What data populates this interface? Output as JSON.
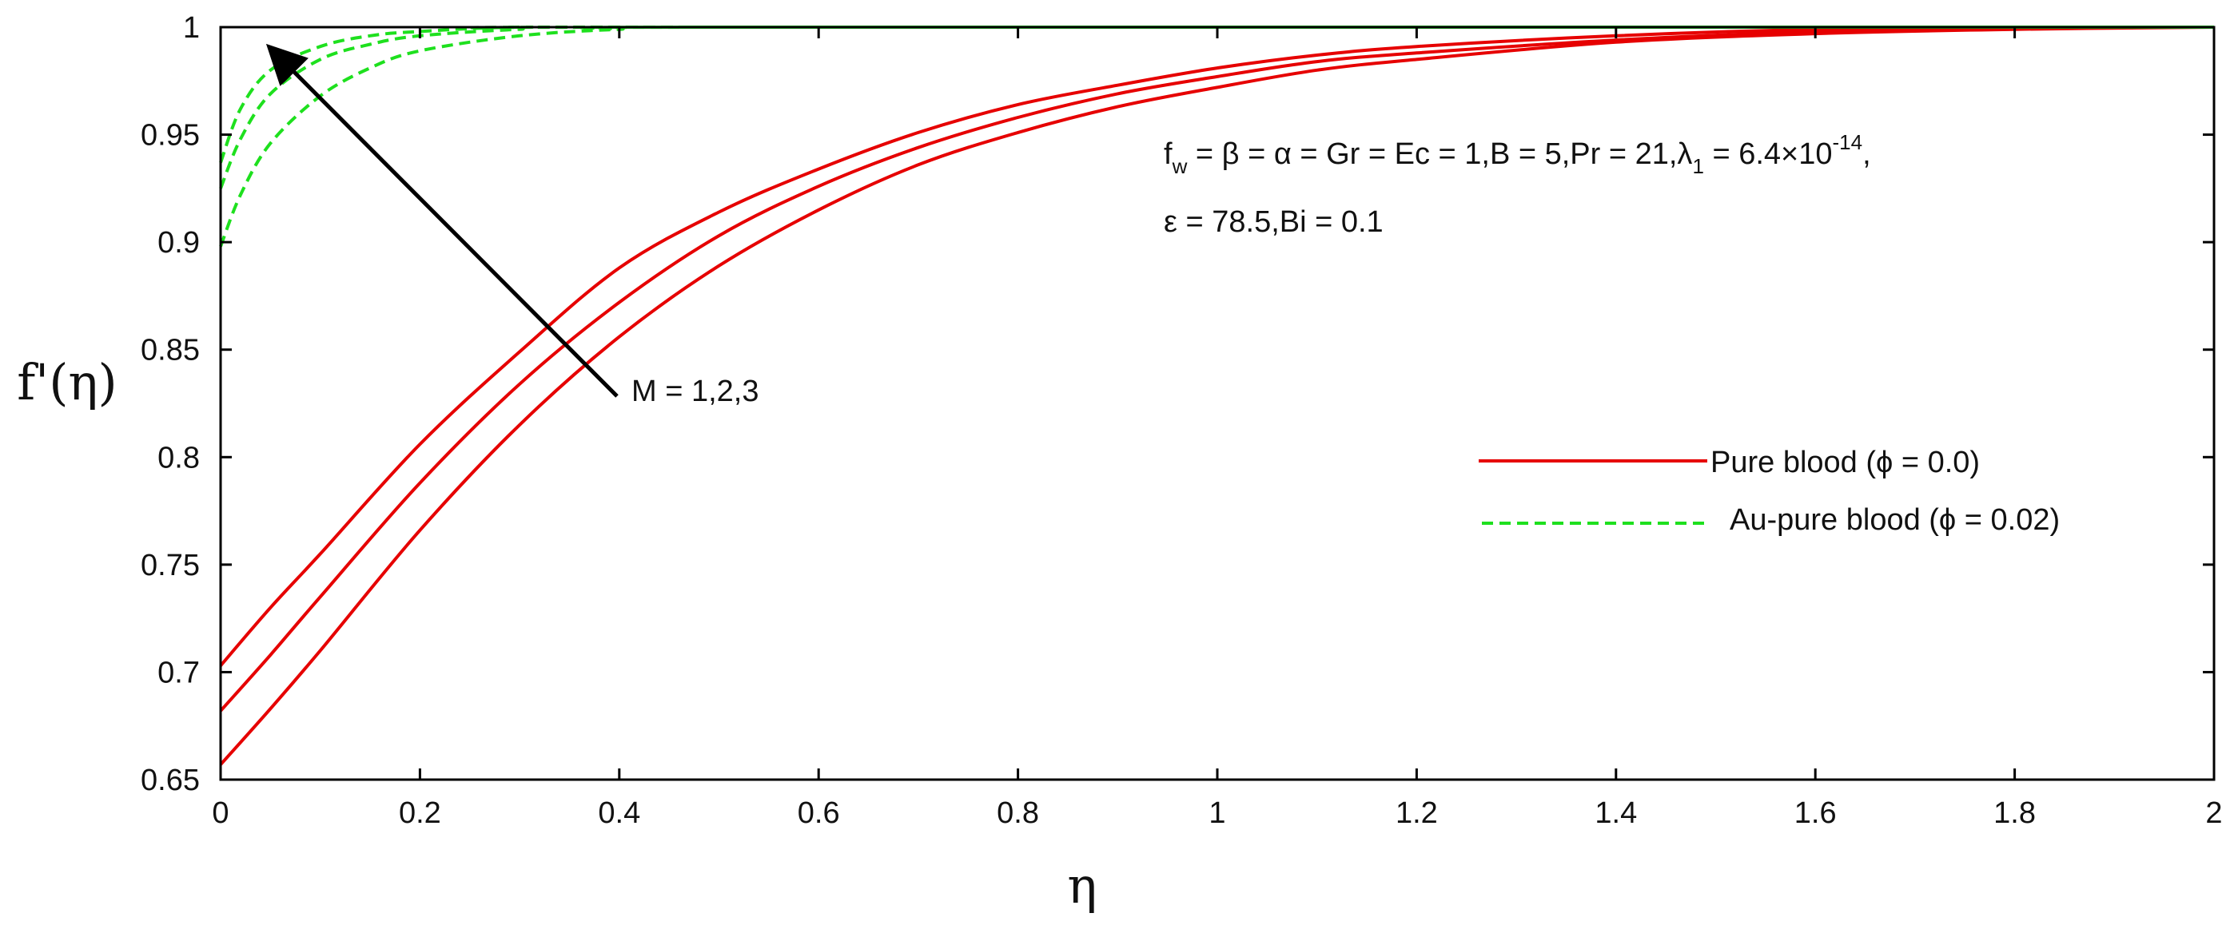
{
  "chart_data": {
    "type": "line",
    "xlabel": "η",
    "ylabel": "f'(η)",
    "xlim": [
      0,
      2
    ],
    "ylim": [
      0.65,
      1
    ],
    "x_ticks": [
      "0",
      "0.2",
      "0.4",
      "0.6",
      "0.8",
      "1",
      "1.2",
      "1.4",
      "1.6",
      "1.8",
      "2"
    ],
    "y_ticks": [
      "0.65",
      "0.7",
      "0.75",
      "0.8",
      "0.85",
      "0.9",
      "0.95",
      "1"
    ],
    "grid": false,
    "legend_position": "right",
    "series": [
      {
        "group": "Pure blood (ϕ = 0.0)",
        "M": 1,
        "color": "#e60000",
        "style": "solid",
        "points": [
          [
            0,
            0.703
          ],
          [
            0.05,
            0.73
          ],
          [
            0.1,
            0.755
          ],
          [
            0.2,
            0.806
          ],
          [
            0.3,
            0.849
          ],
          [
            0.4,
            0.888
          ],
          [
            0.5,
            0.914
          ],
          [
            0.6,
            0.934
          ],
          [
            0.7,
            0.951
          ],
          [
            0.8,
            0.964
          ],
          [
            0.9,
            0.973
          ],
          [
            1.0,
            0.981
          ],
          [
            1.1,
            0.987
          ],
          [
            1.2,
            0.991
          ],
          [
            1.4,
            0.996
          ],
          [
            1.6,
            0.999
          ],
          [
            1.8,
            1.0
          ],
          [
            2.0,
            1.0
          ]
        ]
      },
      {
        "group": "Pure blood (ϕ = 0.0)",
        "M": 2,
        "color": "#e60000",
        "style": "solid",
        "points": [
          [
            0,
            0.682
          ],
          [
            0.05,
            0.708
          ],
          [
            0.1,
            0.735
          ],
          [
            0.2,
            0.788
          ],
          [
            0.3,
            0.834
          ],
          [
            0.4,
            0.872
          ],
          [
            0.5,
            0.903
          ],
          [
            0.6,
            0.926
          ],
          [
            0.7,
            0.944
          ],
          [
            0.8,
            0.958
          ],
          [
            0.9,
            0.969
          ],
          [
            1.0,
            0.977
          ],
          [
            1.1,
            0.984
          ],
          [
            1.2,
            0.988
          ],
          [
            1.4,
            0.994
          ],
          [
            1.6,
            0.998
          ],
          [
            1.8,
            1.0
          ],
          [
            2.0,
            1.0
          ]
        ]
      },
      {
        "group": "Pure blood (ϕ = 0.0)",
        "M": 3,
        "color": "#e60000",
        "style": "solid",
        "points": [
          [
            0,
            0.657
          ],
          [
            0.05,
            0.683
          ],
          [
            0.1,
            0.71
          ],
          [
            0.2,
            0.766
          ],
          [
            0.3,
            0.815
          ],
          [
            0.4,
            0.856
          ],
          [
            0.5,
            0.889
          ],
          [
            0.6,
            0.915
          ],
          [
            0.7,
            0.936
          ],
          [
            0.8,
            0.951
          ],
          [
            0.9,
            0.963
          ],
          [
            1.0,
            0.972
          ],
          [
            1.1,
            0.98
          ],
          [
            1.2,
            0.985
          ],
          [
            1.4,
            0.993
          ],
          [
            1.6,
            0.997
          ],
          [
            1.8,
            0.999
          ],
          [
            2.0,
            1.0
          ]
        ]
      },
      {
        "group": "Au-pure blood (ϕ = 0.02)",
        "M": 1,
        "color": "#1ee01e",
        "style": "dashed",
        "points": [
          [
            0,
            0.937
          ],
          [
            0.02,
            0.962
          ],
          [
            0.05,
            0.98
          ],
          [
            0.1,
            0.991
          ],
          [
            0.15,
            0.996
          ],
          [
            0.2,
            0.998
          ],
          [
            0.3,
            1.0
          ],
          [
            0.5,
            1.0
          ],
          [
            2.0,
            1.0
          ]
        ]
      },
      {
        "group": "Au-pure blood (ϕ = 0.02)",
        "M": 2,
        "color": "#1ee01e",
        "style": "dashed",
        "points": [
          [
            0,
            0.925
          ],
          [
            0.02,
            0.948
          ],
          [
            0.05,
            0.969
          ],
          [
            0.1,
            0.985
          ],
          [
            0.15,
            0.992
          ],
          [
            0.2,
            0.996
          ],
          [
            0.3,
            0.999
          ],
          [
            0.4,
            1.0
          ],
          [
            2.0,
            1.0
          ]
        ]
      },
      {
        "group": "Au-pure blood (ϕ = 0.02)",
        "M": 3,
        "color": "#1ee01e",
        "style": "dashed",
        "points": [
          [
            0,
            0.898
          ],
          [
            0.02,
            0.922
          ],
          [
            0.05,
            0.946
          ],
          [
            0.1,
            0.968
          ],
          [
            0.15,
            0.981
          ],
          [
            0.2,
            0.989
          ],
          [
            0.3,
            0.996
          ],
          [
            0.4,
            0.999
          ],
          [
            0.5,
            1.0
          ],
          [
            2.0,
            1.0
          ]
        ]
      }
    ],
    "legend": [
      {
        "label": "Pure blood (ϕ = 0.0)",
        "color": "#e60000",
        "style": "solid"
      },
      {
        "label": "Au-pure blood (ϕ = 0.02)",
        "color": "#1ee01e",
        "style": "dashed"
      }
    ],
    "annotations": {
      "arrow_label": "M = 1,2,3",
      "params_line1": {
        "f": "f",
        "w_sub": "w",
        "text_a": " = β = α = Gr = Ec = 1,B = 5,Pr = 21,λ",
        "one_sub": "1",
        "text_b": " = 6.4×10",
        "exp_sup": "-14",
        "comma": ","
      },
      "params_line2": "ε = 78.5,Bi = 0.1"
    }
  }
}
